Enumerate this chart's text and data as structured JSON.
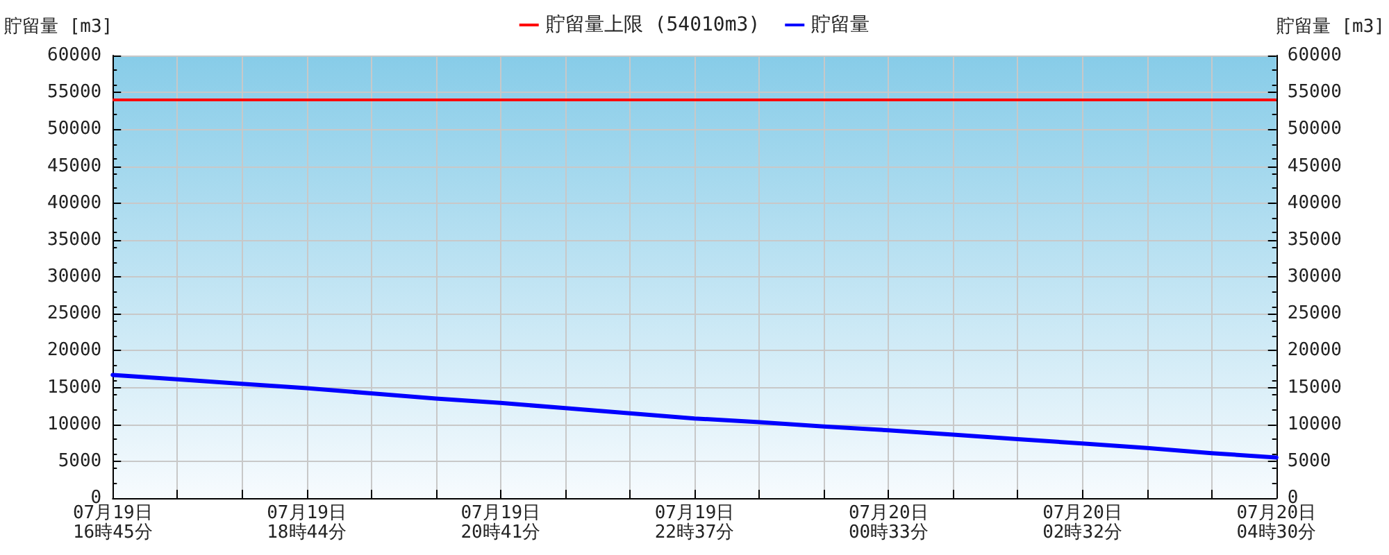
{
  "chart_data": {
    "type": "line",
    "ylabel": "貯留量 [m3]",
    "y2label": "貯留量 [m3]",
    "categories": [
      "07月19日\n16時45分",
      null,
      null,
      "07月19日\n18時44分",
      null,
      null,
      "07月19日\n20時41分",
      null,
      null,
      "07月19日\n22時37分",
      null,
      null,
      "07月20日\n00時33分",
      null,
      null,
      "07月20日\n02時32分",
      null,
      null,
      "07月20日\n04時30分"
    ],
    "series": [
      {
        "name": "貯留量",
        "color": "#0000ff",
        "values": [
          16700,
          16100,
          15500,
          14900,
          14200,
          13500,
          12900,
          12200,
          11500,
          10800,
          10300,
          9700,
          9200,
          8600,
          8000,
          7400,
          6800,
          6100,
          5500
        ]
      }
    ],
    "ylim": [
      0,
      60000
    ],
    "yticks": [
      0,
      5000,
      10000,
      15000,
      20000,
      25000,
      30000,
      35000,
      40000,
      45000,
      50000,
      55000,
      60000
    ],
    "y2lim": [
      0,
      60000
    ],
    "y2ticks": [
      0,
      5000,
      10000,
      15000,
      20000,
      25000,
      30000,
      35000,
      40000,
      45000,
      50000,
      55000,
      60000
    ],
    "ref_lines": [
      {
        "axis": "y",
        "value": 54010,
        "label": "貯留量上限 (54010m3)",
        "color": "#ff0000",
        "line_style": "solid"
      }
    ],
    "grid": true,
    "legend": "top",
    "marker": "none",
    "line_style": "solid"
  }
}
